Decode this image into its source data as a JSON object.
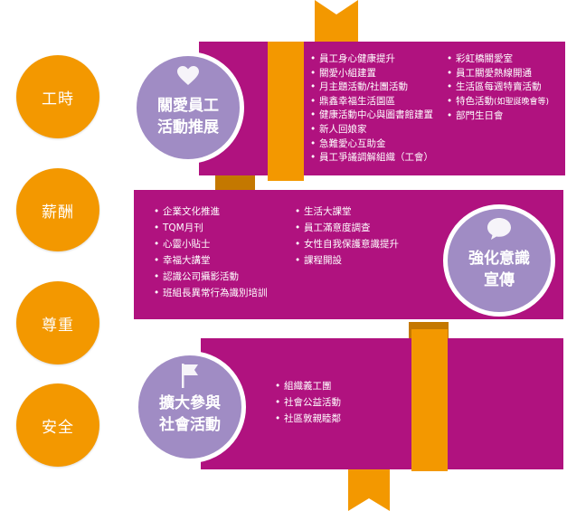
{
  "left_labels": [
    "工時",
    "薪酬",
    "尊重",
    "安全"
  ],
  "themes": {
    "care": {
      "line1": "關愛員工",
      "line2": "活動推展",
      "icon": "heart-icon"
    },
    "promo": {
      "line1": "強化意識",
      "line2": "宣傳",
      "icon": "speech-bubble-icon"
    },
    "expand": {
      "line1": "擴大參與",
      "line2": "社會活動",
      "icon": "flag-icon"
    }
  },
  "care_items_col1": [
    "員工身心健康提升",
    "關愛小組建置",
    "月主題活動/社團活動",
    "鼎鑫幸福生活園區",
    "健康活動中心與圖書館建置",
    "新人回娘家",
    "急難愛心互助金",
    "員工爭議調解組織（工會）"
  ],
  "care_items_col2": [
    "彩虹橋關愛室",
    "員工關愛熱線開通",
    "生活區每週特賣活動",
    "特色活動",
    "部門生日會"
  ],
  "care_items_col2_note": "(如聖誕晚會等)",
  "promo_items_col1": [
    "企業文化推進",
    "TQM月刊",
    "心靈小貼士",
    "幸福大講堂",
    "認識公司攝影活動",
    "班組長異常行為識別培訓"
  ],
  "promo_items_col2": [
    "生活大課堂",
    "員工滿意度調查",
    "女性自我保護意識提升",
    "課程開設"
  ],
  "expand_items": [
    "組織義工團",
    "社會公益活動",
    "社區敦親睦鄰"
  ],
  "colors": {
    "magenta": "#b0127f",
    "orange": "#f39800",
    "lavender": "#a08cc4"
  }
}
